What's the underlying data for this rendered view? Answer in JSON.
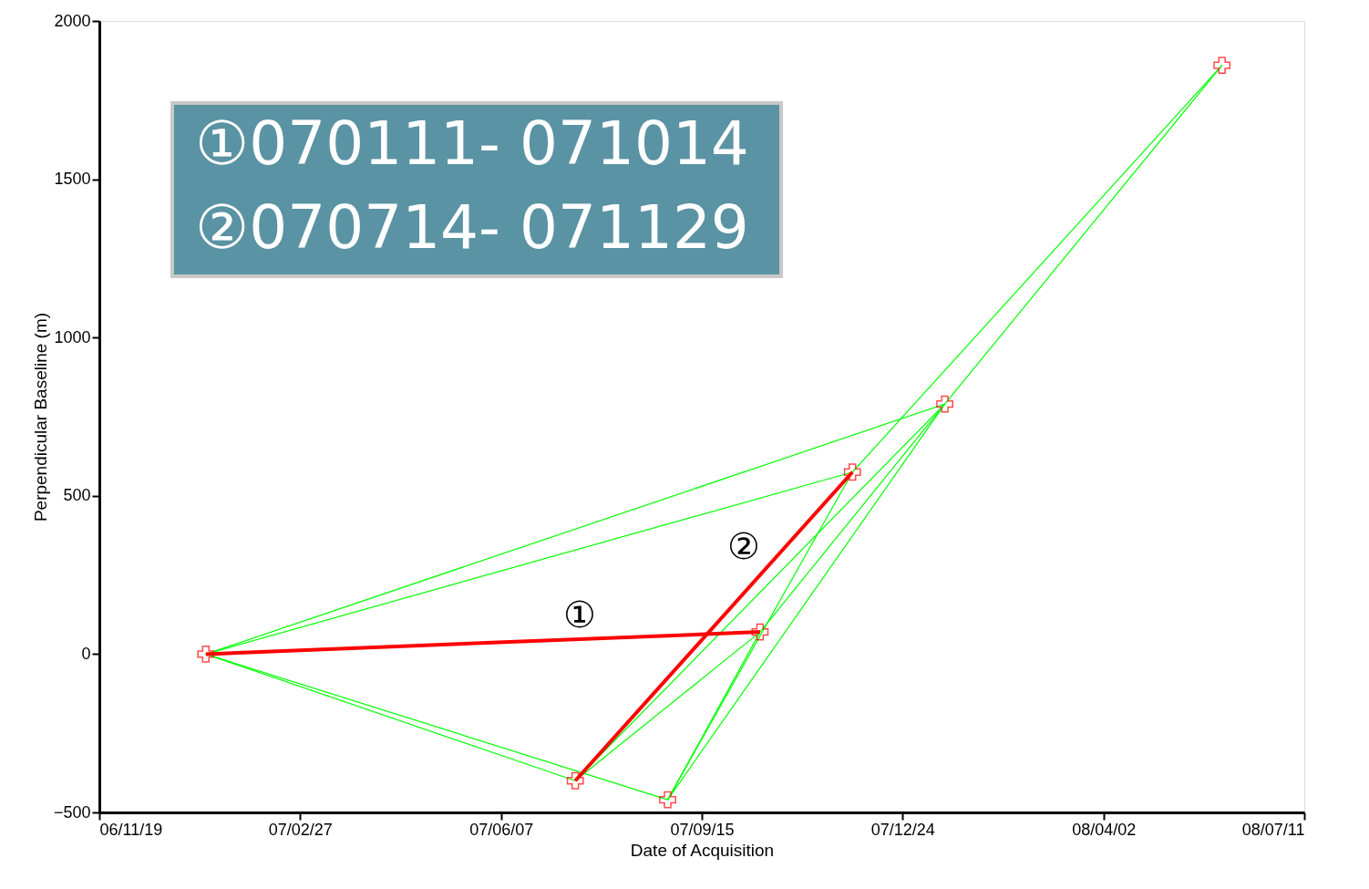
{
  "chart_data": {
    "type": "scatter",
    "xlabel": "Date of Acquisition",
    "ylabel": "Perpendicular Baseline (m)",
    "xlim": [
      "2006-11-19",
      "2008-07-11"
    ],
    "xticks": [
      {
        "value": "2006-11-19",
        "label": "06/11/19"
      },
      {
        "value": "2007-02-27",
        "label": "07/02/27"
      },
      {
        "value": "2007-06-07",
        "label": "07/06/07"
      },
      {
        "value": "2007-09-15",
        "label": "07/09/15"
      },
      {
        "value": "2007-12-24",
        "label": "07/12/24"
      },
      {
        "value": "2008-04-02",
        "label": "08/04/02"
      },
      {
        "value": "2008-07-11",
        "label": "08/07/11"
      }
    ],
    "ylim": [
      -500,
      2000
    ],
    "yticks": [
      -500,
      0,
      500,
      1000,
      1500,
      2000
    ],
    "grid": false,
    "series": [
      {
        "type": "line",
        "color": "#00ff00",
        "x": [
          "2007-01-11",
          "2007-07-14"
        ],
        "values": [
          0,
          -400
        ]
      },
      {
        "type": "line",
        "color": "#00ff00",
        "x": [
          "2007-01-11",
          "2007-08-29"
        ],
        "values": [
          0,
          -460
        ]
      },
      {
        "type": "line",
        "color": "#00ff00",
        "x": [
          "2007-01-11",
          "2007-11-29"
        ],
        "values": [
          0,
          575
        ]
      },
      {
        "type": "line",
        "color": "#00ff00",
        "x": [
          "2007-01-11",
          "2008-01-14"
        ],
        "values": [
          0,
          790
        ]
      },
      {
        "type": "line",
        "color": "#00ff00",
        "x": [
          "2007-07-14",
          "2007-10-14"
        ],
        "values": [
          -400,
          70
        ]
      },
      {
        "type": "line",
        "color": "#00ff00",
        "x": [
          "2007-07-14",
          "2008-01-14"
        ],
        "values": [
          -400,
          790
        ]
      },
      {
        "type": "line",
        "color": "#00ff00",
        "x": [
          "2007-08-29",
          "2007-10-14"
        ],
        "values": [
          -460,
          70
        ]
      },
      {
        "type": "line",
        "color": "#00ff00",
        "x": [
          "2007-08-29",
          "2007-11-29"
        ],
        "values": [
          -460,
          575
        ]
      },
      {
        "type": "line",
        "color": "#00ff00",
        "x": [
          "2007-08-29",
          "2008-01-14"
        ],
        "values": [
          -460,
          790
        ]
      },
      {
        "type": "line",
        "color": "#00ff00",
        "x": [
          "2007-10-14",
          "2008-01-14"
        ],
        "values": [
          70,
          790
        ]
      },
      {
        "type": "line",
        "color": "#00ff00",
        "x": [
          "2007-11-29",
          "2008-05-31"
        ],
        "values": [
          575,
          1860
        ]
      },
      {
        "type": "line",
        "color": "#00ff00",
        "x": [
          "2008-01-14",
          "2008-05-31"
        ],
        "values": [
          790,
          1860
        ]
      },
      {
        "type": "line",
        "color": "#ff0000",
        "x": [
          "2007-01-11",
          "2007-10-14"
        ],
        "values": [
          0,
          70
        ]
      },
      {
        "type": "line",
        "color": "#ff0000",
        "x": [
          "2007-07-14",
          "2007-11-29"
        ],
        "values": [
          -400,
          575
        ]
      },
      {
        "color": "#ff0000",
        "marker": "cross",
        "x": [
          "2007-01-11",
          "2007-07-14",
          "2007-08-29",
          "2007-10-14",
          "2007-11-29",
          "2008-01-14",
          "2008-05-31"
        ],
        "values": [
          0,
          -400,
          -460,
          70,
          575,
          790,
          1860
        ]
      }
    ],
    "annotations": [
      "①070111- 071014",
      "②070714- 071129",
      "①",
      "②"
    ]
  }
}
